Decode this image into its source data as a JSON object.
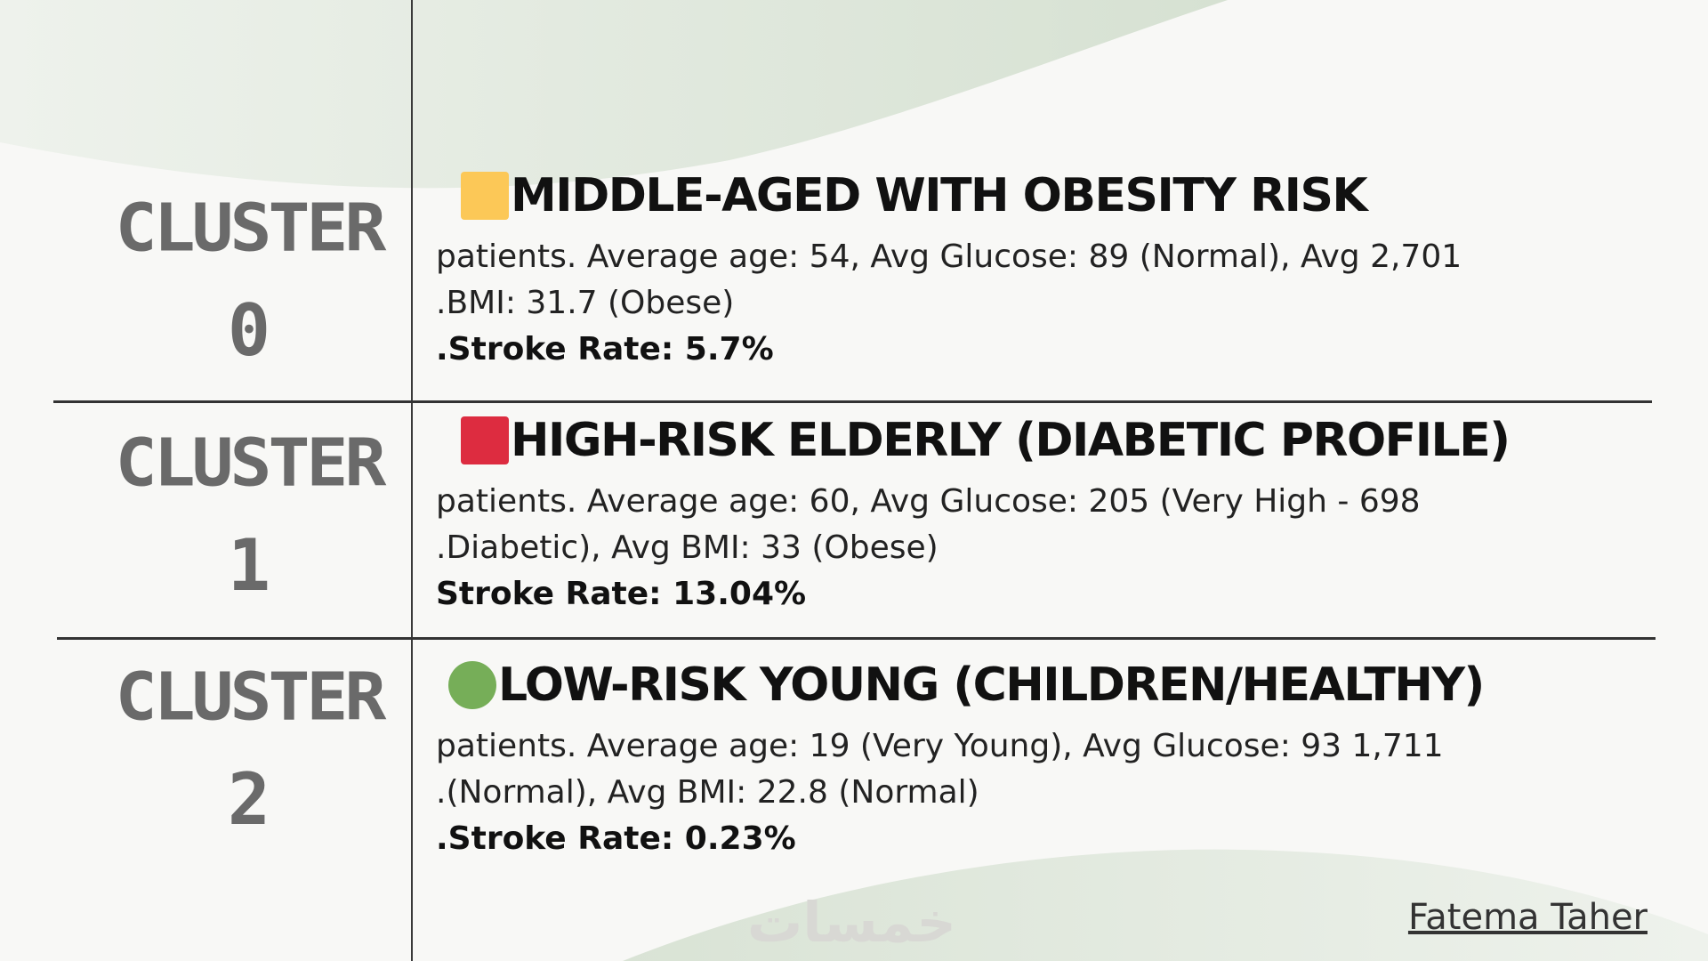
{
  "clusters": [
    {
      "label_word": "CLUSTER",
      "label_num": "0",
      "marker_color": "#fcc857",
      "marker_shape": "square",
      "title": "MIDDLE-AGED WITH OBESITY RISK",
      "line1": "patients. Average age: 54, Avg Glucose: 89 (Normal), Avg 2,701",
      "line2": ".BMI: 31.7 (Obese)",
      "line3": ".Stroke Rate: 5.7%"
    },
    {
      "label_word": "CLUSTER",
      "label_num": "1",
      "marker_color": "#dd2c40",
      "marker_shape": "square",
      "title": "HIGH-RISK ELDERLY (DIABETIC PROFILE)",
      "line1": "patients. Average age: 60, Avg Glucose: 205 (Very High - 698",
      "line2": ".Diabetic), Avg BMI: 33 (Obese)",
      "line3": "Stroke Rate: 13.04%"
    },
    {
      "label_word": "CLUSTER",
      "label_num": "2",
      "marker_color": "#76ae58",
      "marker_shape": "circle",
      "title": "LOW-RISK YOUNG (CHILDREN/HEALTHY)",
      "line1": "patients. Average age: 19 (Very Young), Avg Glucose: 93 1,711",
      "line2": ".(Normal), Avg BMI: 22.8 (Normal)",
      "line3": ".Stroke Rate: 0.23%"
    }
  ],
  "watermark": "خمسات",
  "author": "Fatema Taher",
  "colors": {
    "background": "#f8f8f6",
    "blob": "#d9e3d5",
    "label_gray": "#6a6a6a"
  }
}
